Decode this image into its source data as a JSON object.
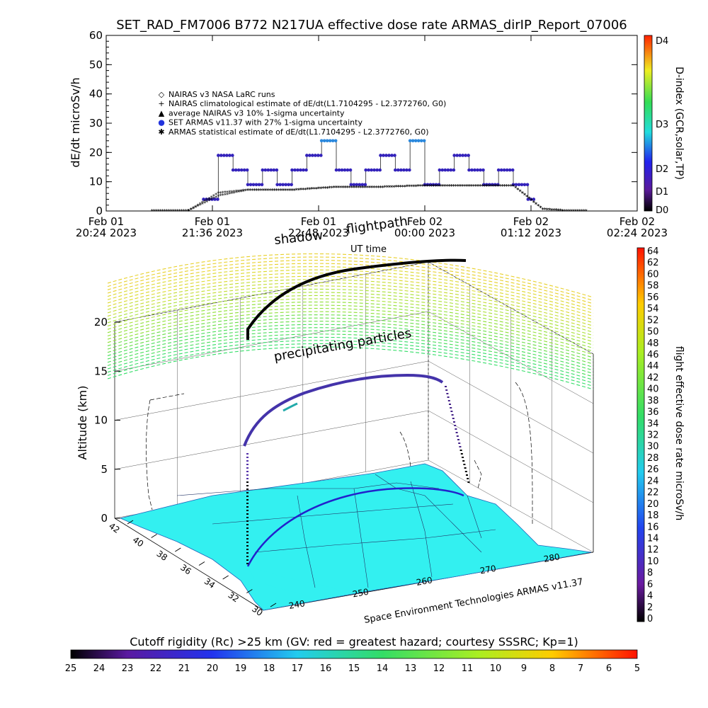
{
  "title": "SET_RAD_FM7006   B772 N217UA effective dose rate ARMAS_dirIP_Report_07006",
  "top_panel": {
    "ylabel": "dE/dt microSv/h",
    "y_ticks": [
      "60",
      "50",
      "40",
      "30",
      "20",
      "10",
      "0"
    ],
    "x_ticks": [
      {
        "date": "Feb 01",
        "time": "20:24 2023"
      },
      {
        "date": "Feb 01",
        "time": "21:36 2023"
      },
      {
        "date": "Feb 01",
        "time": "22:48 2023"
      },
      {
        "date": "Feb 02",
        "time": "00:00 2023"
      },
      {
        "date": "Feb 02",
        "time": "01:12 2023"
      },
      {
        "date": "Feb 02",
        "time": "02:24 2023"
      }
    ],
    "legend": [
      "NAIRAS v3 NASA LaRC runs",
      "NAIRAS climatological estimate of dE/dt(L1.7104295 - L2.3772760, G0)",
      "average NAIRAS v3 10% 1-sigma uncertainty",
      "SET ARMAS v11.37 with 27% 1-sigma uncertainty",
      "ARMAS statistical estimate of dE/dt(L1.7104295 - L2.3772760, G0)"
    ],
    "dindex_label": "D-index (GCR,solar,TP)",
    "dindex_ticks": [
      "D4",
      "D3",
      "D2",
      "D1",
      "D0"
    ]
  },
  "chart_data": [
    {
      "type": "scatter",
      "title": "SET_RAD_FM7006   B772 N217UA effective dose rate ARMAS_dirIP_Report_07006",
      "ylabel": "dE/dt microSv/h",
      "ylim": [
        0,
        60
      ],
      "xlim": [
        "2023-02-01 20:24",
        "2023-02-02 02:24"
      ],
      "series": [
        {
          "name": "SET ARMAS v11.37 with 27% 1-sigma uncertainty",
          "x": [
            "2023-02-01 21:30",
            "2023-02-01 21:40",
            "2023-02-01 21:50",
            "2023-02-01 22:00",
            "2023-02-01 22:10",
            "2023-02-01 22:20",
            "2023-02-01 22:30",
            "2023-02-01 22:40",
            "2023-02-01 22:50",
            "2023-02-01 23:00",
            "2023-02-01 23:10",
            "2023-02-01 23:20",
            "2023-02-01 23:30",
            "2023-02-01 23:40",
            "2023-02-01 23:50",
            "2023-02-02 00:00",
            "2023-02-02 00:10",
            "2023-02-02 00:20",
            "2023-02-02 00:30",
            "2023-02-02 00:40",
            "2023-02-02 00:50",
            "2023-02-02 01:00",
            "2023-02-02 01:10"
          ],
          "y": [
            4,
            19,
            14,
            9,
            14,
            9,
            14,
            19,
            24,
            14,
            9,
            14,
            19,
            14,
            24,
            9,
            14,
            19,
            14,
            9,
            14,
            9,
            4
          ]
        },
        {
          "name": "NAIRAS climatological estimate of dE/dt(L1.7104295 - L2.3772760, G0)",
          "x": [
            "2023-02-01 21:20",
            "2023-02-01 21:40",
            "2023-02-01 22:00",
            "2023-02-01 22:30",
            "2023-02-01 23:00",
            "2023-02-01 23:30",
            "2023-02-02 00:00",
            "2023-02-02 00:30",
            "2023-02-02 01:00",
            "2023-02-02 01:20",
            "2023-02-02 01:35"
          ],
          "y": [
            0,
            5,
            7,
            7,
            8,
            8,
            8.5,
            8.5,
            8.5,
            0.5,
            0
          ]
        },
        {
          "name": "ARMAS statistical estimate of dE/dt(L1.7104295 - L2.3772760, G0)",
          "x": [
            "2023-02-01 21:20",
            "2023-02-01 21:40",
            "2023-02-01 22:00",
            "2023-02-01 22:30",
            "2023-02-01 23:00",
            "2023-02-01 23:30",
            "2023-02-02 00:00",
            "2023-02-02 00:30",
            "2023-02-02 01:00",
            "2023-02-02 01:20",
            "2023-02-02 01:35"
          ],
          "y": [
            0,
            6,
            7,
            7,
            8,
            8,
            8.5,
            8.5,
            8.5,
            0.5,
            0
          ]
        }
      ]
    },
    {
      "type": "line",
      "title": "",
      "zlabel": "Altitude (km)",
      "zlim": [
        0,
        20
      ],
      "z_ticks": [
        "20",
        "15",
        "10",
        "5",
        "0"
      ],
      "lat_ticks": [
        "42",
        "40",
        "38",
        "36",
        "34",
        "32",
        "30"
      ],
      "lon_ticks": [
        "240",
        "250",
        "260",
        "270",
        "280"
      ]
    }
  ],
  "plot3d": {
    "annotations": {
      "flightpath": "flightpath",
      "shadow": "shadow",
      "ut_time": "UT time",
      "precipitating": "precipitating particles",
      "credit": "Space Environment Technologies ARMAS v11.37"
    }
  },
  "dose_colorbar": {
    "label": "flight effective dose rate microSv/h",
    "ticks": [
      "64",
      "62",
      "60",
      "58",
      "56",
      "54",
      "52",
      "50",
      "48",
      "46",
      "44",
      "42",
      "40",
      "38",
      "36",
      "34",
      "32",
      "30",
      "28",
      "26",
      "24",
      "22",
      "20",
      "18",
      "16",
      "14",
      "12",
      "10",
      "8",
      "6",
      "4",
      "2",
      "0"
    ]
  },
  "cutoff_colorbar": {
    "label": "Cutoff rigidity (Rc) >25 km (GV: red = greatest hazard; courtesy SSSRC; Kp=1)",
    "ticks": [
      "25",
      "24",
      "23",
      "22",
      "21",
      "20",
      "19",
      "18",
      "17",
      "16",
      "15",
      "14",
      "13",
      "12",
      "11",
      "10",
      "9",
      "8",
      "7",
      "6",
      "5"
    ]
  },
  "colors": {
    "armas_blue": "#2233dd",
    "map_fill": "#33f0f0",
    "flight_track": "#4433aa"
  }
}
